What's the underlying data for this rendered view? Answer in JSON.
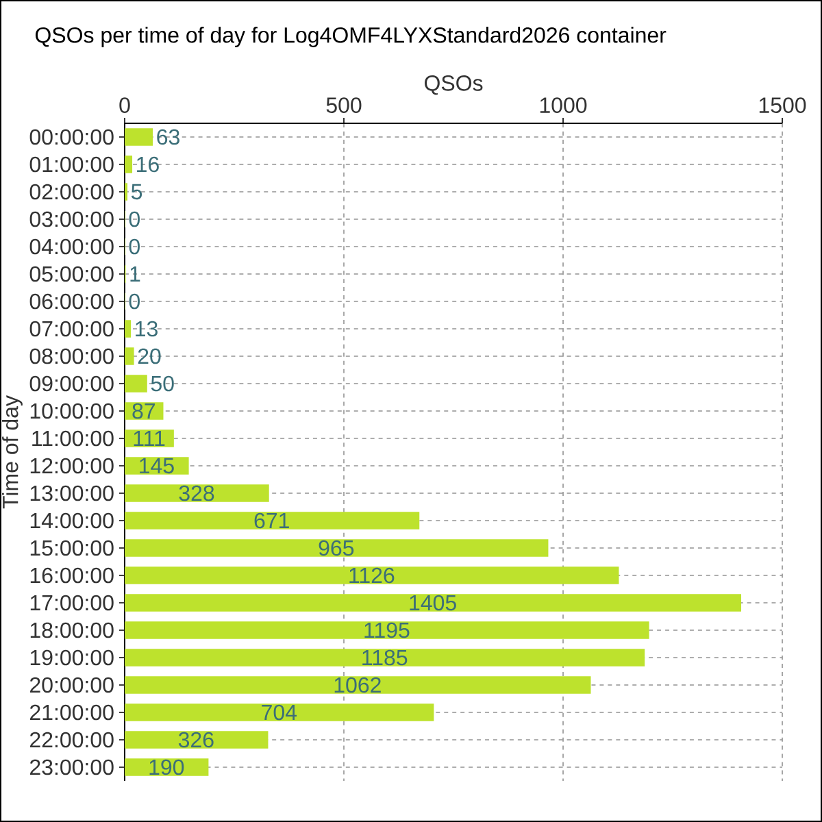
{
  "chart_data": {
    "type": "bar",
    "orientation": "horizontal",
    "title": "QSOs per time of day for Log4OMF4LYXStandard2026 container",
    "xlabel": "QSOs",
    "ylabel": "Time of day",
    "categories": [
      "00:00:00",
      "01:00:00",
      "02:00:00",
      "03:00:00",
      "04:00:00",
      "05:00:00",
      "06:00:00",
      "07:00:00",
      "08:00:00",
      "09:00:00",
      "10:00:00",
      "11:00:00",
      "12:00:00",
      "13:00:00",
      "14:00:00",
      "15:00:00",
      "16:00:00",
      "17:00:00",
      "18:00:00",
      "19:00:00",
      "20:00:00",
      "21:00:00",
      "22:00:00",
      "23:00:00"
    ],
    "values": [
      63,
      16,
      5,
      0,
      0,
      1,
      0,
      13,
      20,
      50,
      87,
      111,
      145,
      328,
      671,
      965,
      1126,
      1405,
      1195,
      1185,
      1062,
      704,
      326,
      190
    ],
    "color": "#bde22d",
    "xlim": [
      0,
      1500
    ],
    "xticks": [
      0,
      500,
      1000,
      1500
    ],
    "grid": true,
    "data_labels": true
  }
}
